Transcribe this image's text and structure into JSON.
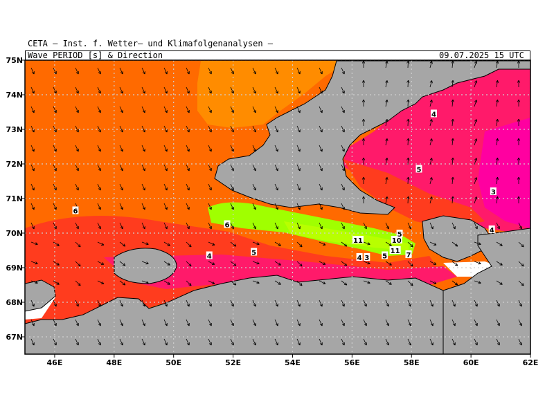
{
  "header": {
    "institute": "CETA – Inst. f. Wetter– und Klimafolgenanalysen –",
    "product": "Wave PERIOD [s] & Direction",
    "datetime": "09.07.2025 15 UTC"
  },
  "axes": {
    "lon_ticks": [
      "46E",
      "48E",
      "50E",
      "52E",
      "54E",
      "56E",
      "58E",
      "60E",
      "62E"
    ],
    "lat_ticks": [
      "75N",
      "74N",
      "73N",
      "72N",
      "71N",
      "70N",
      "69N",
      "68N",
      "67N"
    ],
    "lon_range": [
      45,
      62
    ],
    "lat_range": [
      66.5,
      75
    ]
  },
  "colors": {
    "period_3": "#ff00a0",
    "period_4": "#ff1a6a",
    "period_5": "#ff3c1e",
    "period_6": "#ff6a00",
    "period_7": "#ff8c00",
    "period_10_11": "#a0ff00",
    "land": "#a6a6a6",
    "coast": "#000000"
  },
  "contour_labels": [
    {
      "text": "6",
      "lon": 46.7,
      "lat": 70.65
    },
    {
      "text": "6",
      "lon": 51.8,
      "lat": 70.25
    },
    {
      "text": "5",
      "lon": 52.7,
      "lat": 69.45
    },
    {
      "text": "4",
      "lon": 51.2,
      "lat": 69.35
    },
    {
      "text": "11",
      "lon": 56.2,
      "lat": 69.8
    },
    {
      "text": "4",
      "lon": 56.25,
      "lat": 69.3
    },
    {
      "text": "3",
      "lon": 56.5,
      "lat": 69.3
    },
    {
      "text": "5",
      "lon": 57.1,
      "lat": 69.35
    },
    {
      "text": "10",
      "lon": 57.5,
      "lat": 69.8
    },
    {
      "text": "11",
      "lon": 57.45,
      "lat": 69.5
    },
    {
      "text": "7",
      "lon": 57.9,
      "lat": 69.38
    },
    {
      "text": "5",
      "lon": 57.6,
      "lat": 69.98
    },
    {
      "text": "5",
      "lon": 58.25,
      "lat": 71.85
    },
    {
      "text": "4",
      "lon": 58.75,
      "lat": 73.45
    },
    {
      "text": "3",
      "lon": 60.75,
      "lat": 71.2
    },
    {
      "text": "4",
      "lon": 60.7,
      "lat": 70.1
    }
  ]
}
